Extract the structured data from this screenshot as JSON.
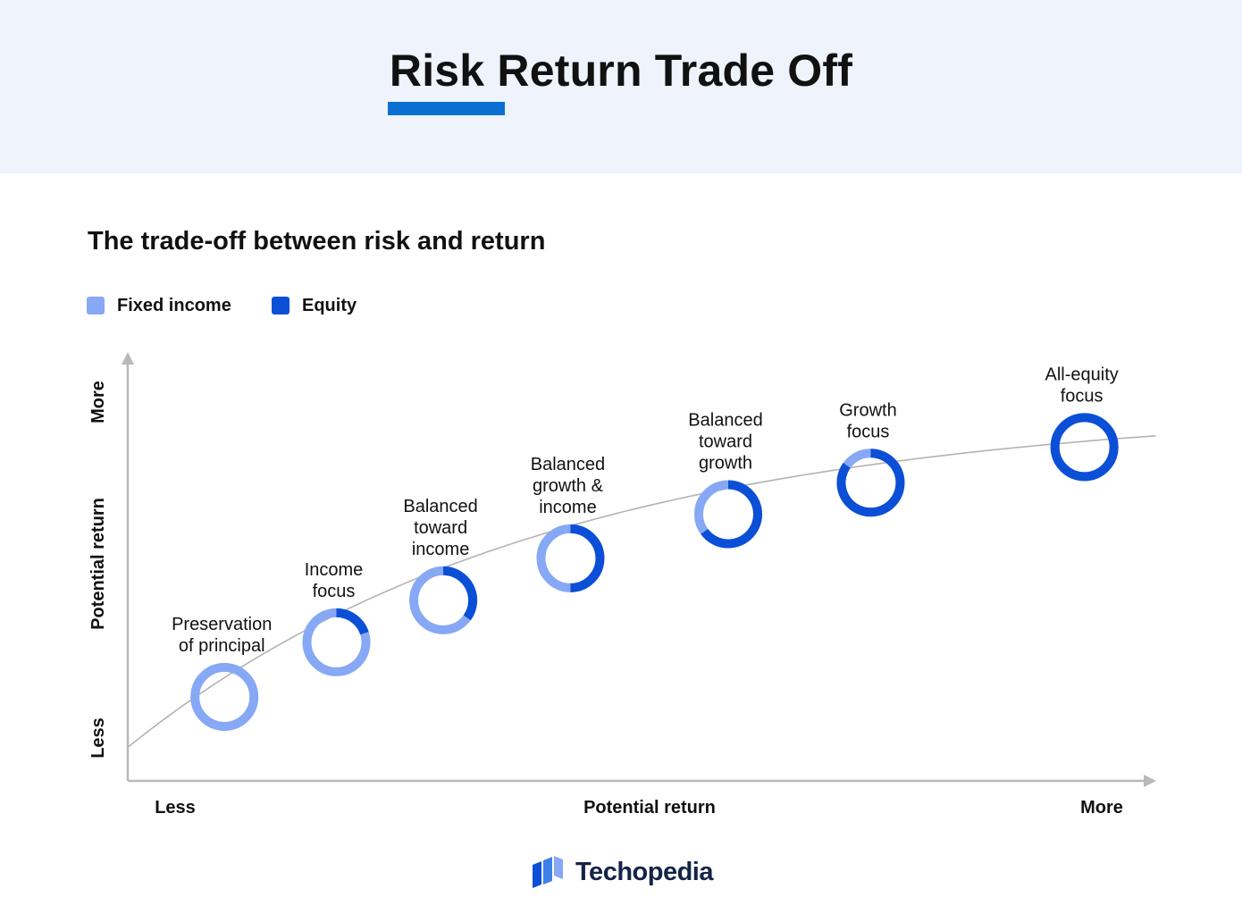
{
  "header": {
    "title": "Risk Return Trade Off"
  },
  "colors": {
    "fixed_income": "#86a8f5",
    "equity": "#0b4fd6",
    "axis": "#b9b9b9",
    "curve": "#b3b3b3",
    "accent": "#0a6fd1"
  },
  "chart_data": {
    "type": "scatter",
    "title": "The trade-off between risk and return",
    "xlabel": "Potential return",
    "ylabel": "Potential return",
    "x_axis_ends": {
      "low": "Less",
      "high": "More"
    },
    "y_axis_ends": {
      "low": "Less",
      "high": "More"
    },
    "xlim": [
      0,
      1
    ],
    "ylim": [
      0,
      1
    ],
    "grid": false,
    "legend": {
      "position": "top-left",
      "entries": [
        {
          "name": "Fixed income",
          "color": "#86a8f5"
        },
        {
          "name": "Equity",
          "color": "#0b4fd6"
        }
      ]
    },
    "points": [
      {
        "label": [
          "Preservation",
          "of principal"
        ],
        "x": 0.095,
        "y": 0.2,
        "equity_share": 0
      },
      {
        "label": [
          "Income",
          "focus"
        ],
        "x": 0.205,
        "y": 0.33,
        "equity_share": 0.2
      },
      {
        "label": [
          "Balanced",
          "toward",
          "income"
        ],
        "x": 0.31,
        "y": 0.43,
        "equity_share": 0.35
      },
      {
        "label": [
          "Balanced",
          "growth &",
          "income"
        ],
        "x": 0.435,
        "y": 0.53,
        "equity_share": 0.5
      },
      {
        "label": [
          "Balanced",
          "toward",
          "growth"
        ],
        "x": 0.59,
        "y": 0.635,
        "equity_share": 0.65
      },
      {
        "label": [
          "Growth",
          "focus"
        ],
        "x": 0.73,
        "y": 0.71,
        "equity_share": 0.85
      },
      {
        "label": [
          "All-equity",
          "focus"
        ],
        "x": 0.94,
        "y": 0.795,
        "equity_share": 1
      }
    ]
  },
  "brand": {
    "name": "Techopedia"
  }
}
